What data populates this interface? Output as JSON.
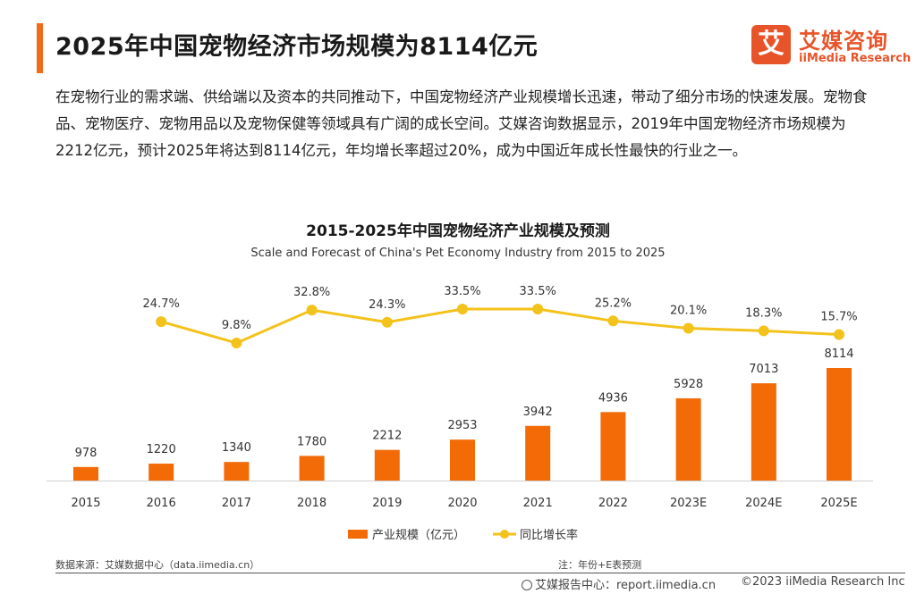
{
  "header": {
    "title": "2025年中国宠物经济市场规模为8114亿元",
    "logo_mark": "艾",
    "logo_cn": "艾媒咨询",
    "logo_en": "iiMedia Research"
  },
  "intro": "在宠物行业的需求端、供给端以及资本的共同推动下，中国宠物经济产业规模增长迅速，带动了细分市场的快速发展。宠物食品、宠物医疗、宠物用品以及宠物保健等领域具有广阔的成长空间。艾媒咨询数据显示，2019年中国宠物经济市场规模为2212亿元，预计2025年将达到8114亿元，年均增长率超过20%，成为中国近年成长性最快的行业之一。",
  "chart_data": {
    "type": "bar",
    "title": "2015-2025年中国宠物经济产业规模及预测",
    "subtitle": "Scale and Forecast of China's Pet Economy Industry from 2015 to 2025",
    "categories": [
      "2015",
      "2016",
      "2017",
      "2018",
      "2019",
      "2020",
      "2021",
      "2022",
      "2023E",
      "2024E",
      "2025E"
    ],
    "series": [
      {
        "name": "产业规模（亿元）",
        "type": "bar",
        "color": "#f26b07",
        "values": [
          978,
          1220,
          1340,
          1780,
          2212,
          2953,
          3942,
          4936,
          5928,
          7013,
          8114
        ]
      },
      {
        "name": "同比增长率",
        "type": "line",
        "color": "#f3c21b",
        "values": [
          null,
          24.7,
          9.8,
          32.8,
          24.3,
          33.5,
          33.5,
          25.2,
          20.1,
          18.3,
          15.7
        ],
        "labels": [
          "",
          "24.7%",
          "9.8%",
          "32.8%",
          "24.3%",
          "33.5%",
          "33.5%",
          "25.2%",
          "20.1%",
          "18.3%",
          "15.7%"
        ]
      }
    ],
    "legend_position": "bottom",
    "grid": false
  },
  "footer": {
    "source": "数据来源：艾媒数据中心（data.iimedia.cn）",
    "note": "注：年份+E表预测",
    "report": "艾媒报告中心：report.iimedia.cn",
    "copyright": "©2023  iiMedia Research Inc"
  }
}
